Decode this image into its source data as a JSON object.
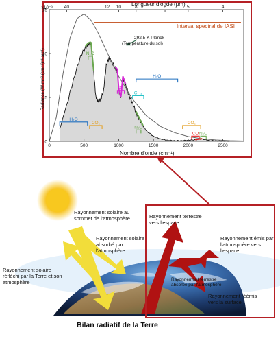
{
  "chart_data": {
    "type": "line",
    "title": "",
    "xlabel": "Nombre d'onde (cm⁻¹)",
    "ylabel": "Radiance (W m⁻² (cm⁻¹)⁻¹ sr⁻¹)",
    "xlim": [
      0,
      2800
    ],
    "ylim": [
      0,
      0.015
    ],
    "y_scale_label": "×10⁻³",
    "x_ticks": [
      "0",
      "500",
      "1000",
      "1500",
      "2000",
      "2500"
    ],
    "y_ticks": [
      "0",
      "5",
      "10",
      "15"
    ],
    "top_axis_label": "Longueur d'onde (μm)",
    "top_ticks": [
      "40",
      "12",
      "10",
      "8",
      "6",
      "5",
      "4"
    ],
    "planck_label": "292.5 K Planck",
    "planck_sublabel": "(Température du sol)",
    "iasi_label": "Interval spectral de IASI",
    "iasi_range": [
      645,
      2760
    ],
    "series": [
      {
        "name": "292.5 K Planck",
        "x": [
          0,
          100,
          200,
          300,
          400,
          500,
          600,
          700,
          800,
          900,
          1000,
          1200,
          1400,
          1600,
          1800,
          2000,
          2200,
          2400,
          2600,
          2800
        ],
        "values": [
          0,
          0.0027,
          0.0078,
          0.0118,
          0.014,
          0.0145,
          0.0138,
          0.0124,
          0.0107,
          0.009,
          0.0074,
          0.0048,
          0.0029,
          0.0017,
          0.001,
          0.00055,
          0.0003,
          0.00016,
          8e-05,
          4e-05
        ]
      },
      {
        "name": "spectre",
        "x": [
          150,
          250,
          350,
          450,
          520,
          560,
          600,
          640,
          670,
          700,
          740,
          780,
          820,
          860,
          900,
          950,
          980,
          1000,
          1030,
          1060,
          1100,
          1150,
          1200,
          1250,
          1300,
          1350,
          1400,
          1500,
          1600,
          1700,
          1800,
          1900,
          2000,
          2100,
          2200,
          2300,
          2400,
          2500,
          2600
        ],
        "values": [
          0.0014,
          0.0042,
          0.0072,
          0.0098,
          0.0108,
          0.0112,
          0.0113,
          0.008,
          0.0052,
          0.0047,
          0.0049,
          0.0058,
          0.0088,
          0.0096,
          0.0092,
          0.0085,
          0.0082,
          0.006,
          0.005,
          0.0074,
          0.0065,
          0.0053,
          0.0045,
          0.0034,
          0.0026,
          0.0018,
          0.0012,
          0.0006,
          0.0003,
          0.00015,
          0.0001,
          0.0001,
          0.00015,
          0.0002,
          0.0003,
          0.00012,
          8e-05,
          5e-05,
          3e-05
        ]
      }
    ],
    "bands": [
      {
        "gas": "H₂O",
        "x": [
          150,
          550
        ],
        "y": 0.0022,
        "color": "#1f6fbf"
      },
      {
        "gas": "CO₂",
        "x": [
          580,
          760
        ],
        "y": 0.0018,
        "color": "#e3a128"
      },
      {
        "gas": "N₂O",
        "x": [
          560,
          620
        ],
        "y": 0.0097,
        "color": "#6aa84f"
      },
      {
        "gas": "O₃",
        "x": [
          980,
          1080
        ],
        "y": 0.0058,
        "color": "#d62ad6"
      },
      {
        "gas": "CH₄",
        "x": [
          1200,
          1360
        ],
        "y": 0.0052,
        "color": "#27c2c8"
      },
      {
        "gas": "H₂O",
        "x": [
          1250,
          1850
        ],
        "y": 0.0071,
        "color": "#1f6fbf"
      },
      {
        "gas": "N₂O",
        "x": [
          1250,
          1320
        ],
        "y": 0.0013,
        "color": "#6aa84f"
      },
      {
        "gas": "CO₂",
        "x": [
          1920,
          2180
        ],
        "y": 0.0018,
        "color": "#e3a128"
      },
      {
        "gas": "CO",
        "x": [
          2050,
          2160
        ],
        "y": 0.0006,
        "color": "#e62020"
      },
      {
        "gas": "N₂O",
        "x": [
          2180,
          2260
        ],
        "y": 0.0006,
        "color": "#6aa84f"
      }
    ]
  },
  "diagram": {
    "title": "Bilan radiatif de la Terre",
    "labels": {
      "solar_top": "Rayonnement solaire au sommet de l'atmosphère",
      "solar_absorbed": "Rayonnement solaire absorbé par l'atmosphère",
      "solar_reflected": "Rayonnement solaire réfléchi par la Terre et son atmosphère",
      "terrestrial_space": "Rayonnement terrestre vers l'espace",
      "emitted_space": "Rayonnement émis par l'atmosphère vers l'espace",
      "terrestrial_absorbed": "Rayonnement terrestre absorbé par l'atmosphère",
      "reemitted_surface": "Rayonnement réémis vers la surface"
    },
    "colors": {
      "solar": "#f2dd3a",
      "terrestrial": "#b01212",
      "frame": "#b52025",
      "planck": "#666666",
      "spectrum": "#111111"
    }
  }
}
